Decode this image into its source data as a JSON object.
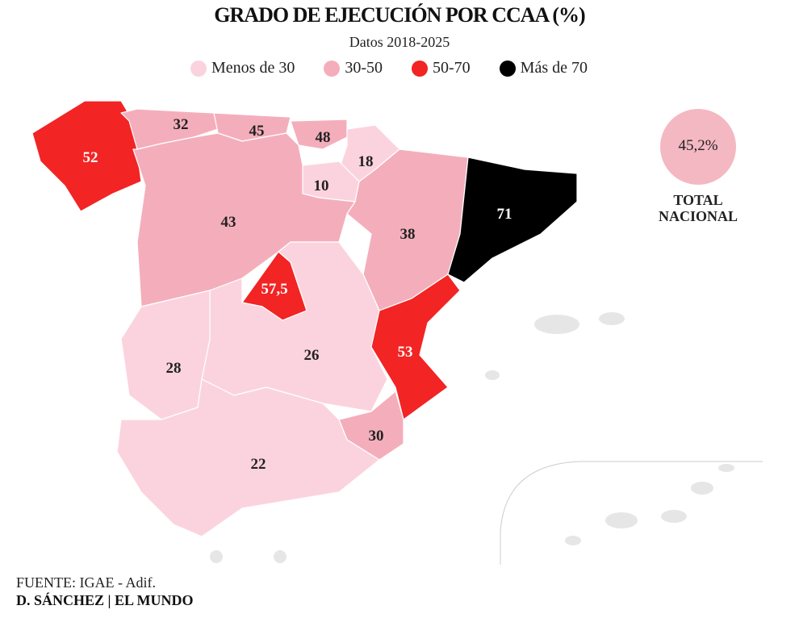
{
  "title": "GRADO DE EJECUCIÓN POR CCAA (%)",
  "subtitle": "Datos 2018-2025",
  "legend": [
    {
      "label": "Menos de 30",
      "color": "#fbd3de"
    },
    {
      "label": "30-50",
      "color": "#f4aebb"
    },
    {
      "label": "50-70",
      "color": "#f22424"
    },
    {
      "label": "Más de 70",
      "color": "#000000"
    }
  ],
  "regions": [
    {
      "id": "galicia",
      "value": "52",
      "color": "#f22424"
    },
    {
      "id": "asturias",
      "value": "32",
      "color": "#f4aebb"
    },
    {
      "id": "cantabria",
      "value": "45",
      "color": "#f4aebb"
    },
    {
      "id": "pais-vasco",
      "value": "48",
      "color": "#f4aebb"
    },
    {
      "id": "navarra",
      "value": "18",
      "color": "#fbd3de"
    },
    {
      "id": "la-rioja",
      "value": "10",
      "color": "#fbd3de"
    },
    {
      "id": "castilla-y-leon",
      "value": "43",
      "color": "#f4aebb"
    },
    {
      "id": "aragon",
      "value": "38",
      "color": "#f4aebb"
    },
    {
      "id": "cataluna",
      "value": "71",
      "color": "#000000"
    },
    {
      "id": "madrid",
      "value": "57,5",
      "color": "#f22424"
    },
    {
      "id": "castilla-la-mancha",
      "value": "26",
      "color": "#fbd3de"
    },
    {
      "id": "extremadura",
      "value": "28",
      "color": "#fbd3de"
    },
    {
      "id": "valencia",
      "value": "53",
      "color": "#f22424"
    },
    {
      "id": "murcia",
      "value": "30",
      "color": "#f4aebb"
    },
    {
      "id": "andalucia",
      "value": "22",
      "color": "#fbd3de"
    }
  ],
  "total": {
    "value": "45,2%",
    "label_line1": "TOTAL",
    "label_line2": "NACIONAL",
    "color": "#f4b8c2"
  },
  "footer": {
    "source": "FUENTE:  IGAE - Adif.",
    "credit": "D. SÁNCHEZ | EL MUNDO"
  }
}
